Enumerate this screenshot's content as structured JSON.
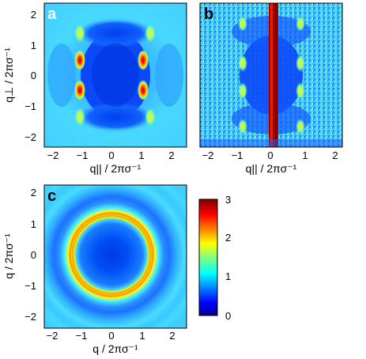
{
  "figure": {
    "panels": [
      {
        "id": "a",
        "letter": "a",
        "xlabel": "q|| / 2πσ⁻¹",
        "ylabel": "q⊥ / 2πσ⁻¹",
        "xticks": [
          "−2",
          "−1",
          "0",
          "1",
          "2"
        ],
        "yticks": [
          "2",
          "1",
          "0",
          "−1",
          "−2"
        ],
        "xlim": [
          -2.4,
          2.4
        ],
        "ylim": [
          -2.3,
          2.3
        ],
        "pattern": "anisotropic structure factor: strong peaks near q|| = ±1, q⊥ = ±0.45"
      },
      {
        "id": "b",
        "letter": "b",
        "xlabel": "q|| / 2πσ⁻¹",
        "xticks": [
          "−2",
          "−1",
          "0",
          "1",
          "2"
        ],
        "xlim": [
          -2.4,
          2.4
        ],
        "ylim": [
          -2.3,
          2.3
        ],
        "pattern": "noisy anisotropic structure factor with vertical streak at q|| = 0"
      },
      {
        "id": "c",
        "letter": "c",
        "xlabel": "q / 2πσ⁻¹",
        "ylabel": "q / 2πσ⁻¹",
        "xticks": [
          "−2",
          "−1",
          "0",
          "1",
          "2"
        ],
        "yticks": [
          "2",
          "1",
          "0",
          "−1",
          "−2"
        ],
        "xlim": [
          -2.4,
          2.4
        ],
        "ylim": [
          -2.3,
          2.3
        ],
        "pattern": "isotropic rings: first peak at q ≈ 1, second ring at q ≈ 1.9"
      }
    ],
    "colorbar": {
      "ticks": [
        "3",
        "2",
        "1",
        "0"
      ],
      "range": [
        0,
        3
      ],
      "colormap": "jet"
    }
  }
}
